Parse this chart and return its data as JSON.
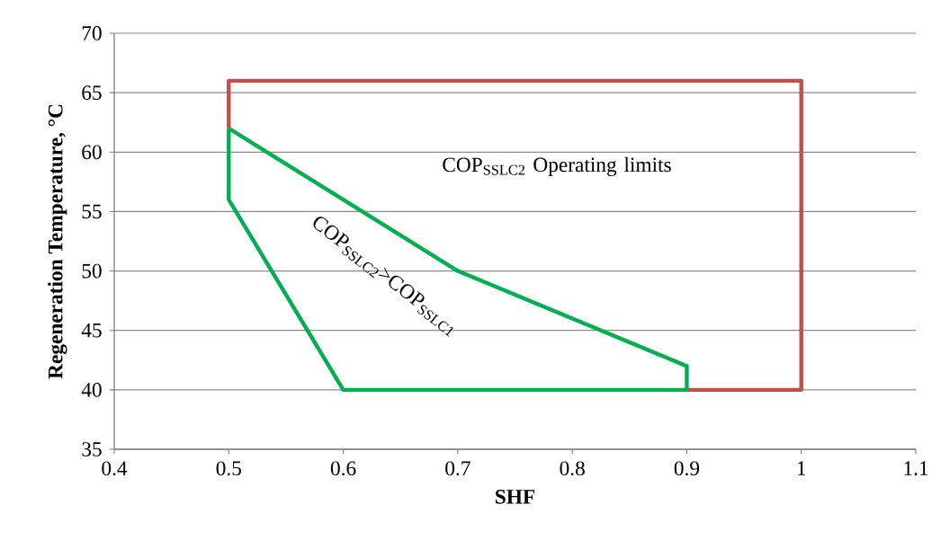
{
  "chart_data": {
    "type": "line",
    "xlabel": "SHF",
    "ylabel": "Regeneration Temperature, °C",
    "annotations": [
      "COP$_{SSLC2}$ Operating limits",
      "COP$_{SSLC2}$>COP$_{SSLC1}$"
    ],
    "series": [
      {
        "color": "#c0504d",
        "x": [
          0.9,
          1,
          1,
          0.5,
          0.5
        ],
        "values": [
          40,
          40,
          66,
          66,
          62
        ]
      },
      {
        "color": "#00b050",
        "x": [
          0.5,
          0.7,
          0.9,
          0.9
        ],
        "values": [
          62,
          50,
          42,
          40
        ]
      },
      {
        "color": "#00b050",
        "x": [
          0.5,
          0.5,
          0.6,
          0.9
        ],
        "values": [
          62,
          56,
          40,
          40
        ]
      }
    ],
    "xlim": [
      0.4,
      1.1
    ],
    "xticks": [
      0.4,
      0.5,
      0.6,
      0.7,
      0.8,
      0.9,
      1,
      1.1
    ],
    "ylim": [
      35,
      70
    ],
    "yticks": [
      35,
      40,
      45,
      50,
      55,
      60,
      65,
      70
    ],
    "grid": "y",
    "marker": "none",
    "line_style": "solid"
  }
}
